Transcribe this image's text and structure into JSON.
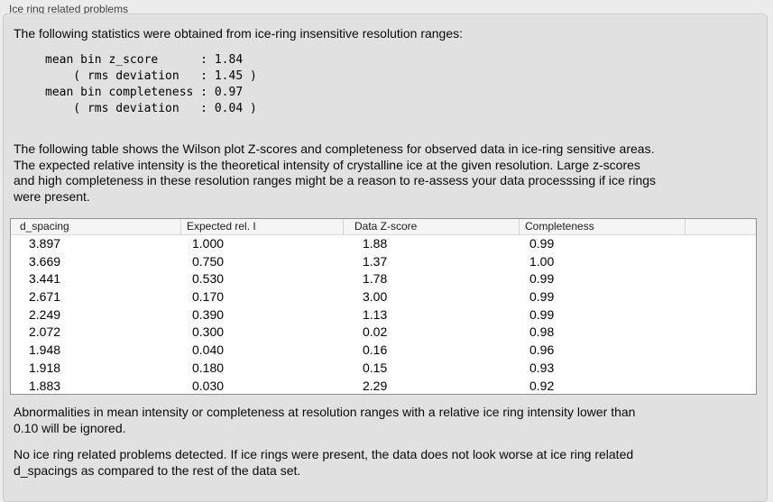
{
  "panel": {
    "title": "Ice ring related problems"
  },
  "intro": "The following statistics were obtained from ice-ring insensitive resolution ranges:",
  "stats": {
    "lines": [
      "mean bin z_score      : 1.84",
      "    ( rms deviation   : 1.45 )",
      "mean bin completeness : 0.97",
      "    ( rms deviation   : 0.04 )"
    ],
    "mean_bin_z_score": "1.84",
    "z_score_rms_deviation": "1.45",
    "mean_bin_completeness": "0.97",
    "completeness_rms_deviation": "0.04"
  },
  "description": {
    "lines": [
      "The following table shows the Wilson plot Z-scores and completeness for observed data in ice-ring sensitive areas.",
      "The expected relative intensity is the theoretical intensity of crystalline ice at the given resolution. Large z-scores",
      "and high completeness in these resolution ranges might be a reason to re-assess your data processsing if ice rings",
      "were present."
    ]
  },
  "table": {
    "headers": [
      "d_spacing",
      "Expected rel. I",
      "Data Z-score",
      "Completeness"
    ],
    "rows": [
      [
        "3.897",
        "1.000",
        "1.88",
        "0.99"
      ],
      [
        "3.669",
        "0.750",
        "1.37",
        "1.00"
      ],
      [
        "3.441",
        "0.530",
        "1.78",
        "0.99"
      ],
      [
        "2.671",
        "0.170",
        "3.00",
        "0.99"
      ],
      [
        "2.249",
        "0.390",
        "1.13",
        "0.99"
      ],
      [
        "2.072",
        "0.300",
        "0.02",
        "0.98"
      ],
      [
        "1.948",
        "0.040",
        "0.16",
        "0.96"
      ],
      [
        "1.918",
        "0.180",
        "0.15",
        "0.93"
      ],
      [
        "1.883",
        "0.030",
        "2.29",
        "0.92"
      ]
    ]
  },
  "ignore_note": {
    "lines": [
      "Abnormalities in mean intensity or completeness at resolution ranges with a relative ice ring intensity lower than",
      "0.10 will be ignored."
    ]
  },
  "conclusion": {
    "lines": [
      "No ice ring related problems detected. If ice rings were present, the data does not look worse at ice ring related",
      "d_spacings as compared to the rest of the data set."
    ]
  }
}
